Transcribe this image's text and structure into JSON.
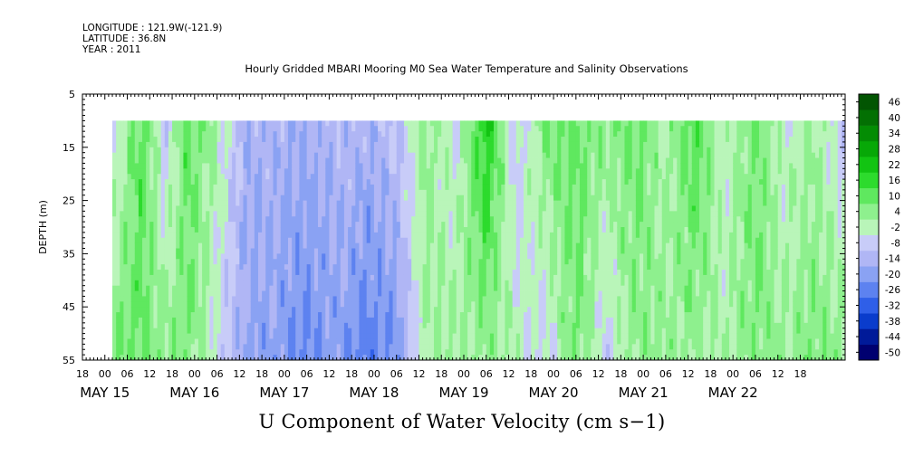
{
  "header": {
    "longitude": "LONGITUDE : 121.9W(-121.9)",
    "latitude": "LATITUDE : 36.8N",
    "year": "YEAR : 2011"
  },
  "chart_data": {
    "type": "heatmap",
    "title": "Hourly Gridded MBARI Mooring M0 Sea Water Temperature and Salinity Observations",
    "xlabel": "U Component of Water Velocity (cm s−1)",
    "ylabel": "DEPTH (m)",
    "x_axis": {
      "range_hours_from_may15_00": [
        -6,
        198
      ],
      "hour_ticks": [
        "18",
        "00",
        "06",
        "12",
        "18",
        "00",
        "06",
        "12",
        "18",
        "00",
        "06",
        "12",
        "18",
        "00",
        "06",
        "12",
        "18",
        "00",
        "06",
        "12",
        "18",
        "00",
        "06",
        "12",
        "18",
        "00",
        "06",
        "12",
        "18",
        "00",
        "06",
        "12",
        "18"
      ],
      "date_labels": [
        "MAY 15",
        "MAY 16",
        "MAY 17",
        "MAY 18",
        "MAY 19",
        "MAY 20",
        "MAY 21",
        "MAY 22"
      ]
    },
    "y_axis": {
      "ylim": [
        5,
        55
      ],
      "inverted": true,
      "ticks": [
        5,
        15,
        25,
        35,
        45,
        55
      ]
    },
    "data_extent": {
      "hours": [
        2,
        198
      ],
      "depth_m": [
        10,
        55
      ]
    },
    "colorbar": {
      "labels": [
        "46",
        "40",
        "34",
        "28",
        "22",
        "16",
        "10",
        "4",
        "-2",
        "-8",
        "-14",
        "-20",
        "-26",
        "-32",
        "-38",
        "-44",
        "-50"
      ],
      "min": -50,
      "max": 50,
      "colors": [
        "#000070",
        "#001a99",
        "#0a3ccc",
        "#2f5fe8",
        "#5d82f0",
        "#8aa2f3",
        "#b0b6f5",
        "#c8ccf8",
        "#b9f5b9",
        "#8ef08e",
        "#5fe85f",
        "#2ddb2d",
        "#12c412",
        "#07a807",
        "#048c04",
        "#037003",
        "#025502"
      ]
    },
    "fields_description_by_time": [
      {
        "h": 2,
        "top": -6,
        "bottom": 8
      },
      {
        "h": 10,
        "top": 14,
        "bottom": 10
      },
      {
        "h": 16,
        "top": -8,
        "bottom": 6
      },
      {
        "h": 22,
        "top": 12,
        "bottom": 8
      },
      {
        "h": 30,
        "top": 2,
        "bottom": -4
      },
      {
        "h": 38,
        "top": -14,
        "bottom": -16
      },
      {
        "h": 46,
        "top": -12,
        "bottom": -18
      },
      {
        "h": 54,
        "top": -14,
        "bottom": -22
      },
      {
        "h": 62,
        "top": -10,
        "bottom": -18
      },
      {
        "h": 70,
        "top": -12,
        "bottom": -24
      },
      {
        "h": 78,
        "top": -8,
        "bottom": -20
      },
      {
        "h": 86,
        "top": 6,
        "bottom": 2
      },
      {
        "h": 94,
        "top": -4,
        "bottom": 4
      },
      {
        "h": 102,
        "top": 22,
        "bottom": 4
      },
      {
        "h": 110,
        "top": -8,
        "bottom": 2
      },
      {
        "h": 118,
        "top": 8,
        "bottom": -6
      },
      {
        "h": 126,
        "top": 10,
        "bottom": 10
      },
      {
        "h": 134,
        "top": 6,
        "bottom": -6
      },
      {
        "h": 142,
        "top": 10,
        "bottom": 6
      },
      {
        "h": 150,
        "top": 2,
        "bottom": 4
      },
      {
        "h": 158,
        "top": 14,
        "bottom": 4
      },
      {
        "h": 166,
        "top": -2,
        "bottom": 2
      },
      {
        "h": 174,
        "top": 10,
        "bottom": 8
      },
      {
        "h": 182,
        "top": -2,
        "bottom": 4
      },
      {
        "h": 190,
        "top": 4,
        "bottom": 8
      },
      {
        "h": 198,
        "top": -8,
        "bottom": 6
      }
    ]
  }
}
